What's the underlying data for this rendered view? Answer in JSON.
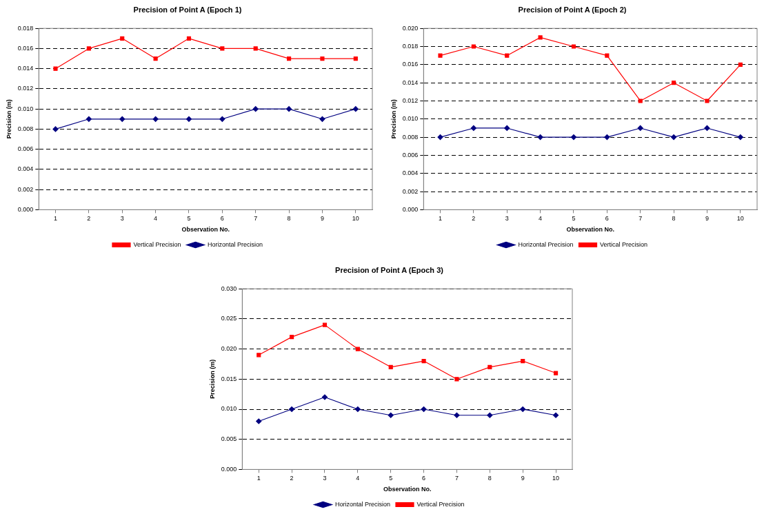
{
  "chart_data": [
    {
      "type": "line",
      "title": "Precision of Point A (Epoch 1)",
      "xlabel": "Observation No.",
      "ylabel": "Precision (m)",
      "categories": [
        "1",
        "2",
        "3",
        "4",
        "5",
        "6",
        "7",
        "8",
        "9",
        "10"
      ],
      "series": [
        {
          "name": "Vertical Precision",
          "color": "#ff0000",
          "marker": "square",
          "values": [
            0.014,
            0.016,
            0.017,
            0.015,
            0.017,
            0.016,
            0.016,
            0.015,
            0.015,
            0.015
          ]
        },
        {
          "name": "Horizontal Precision",
          "color": "#000080",
          "marker": "diamond",
          "values": [
            0.008,
            0.009,
            0.009,
            0.009,
            0.009,
            0.009,
            0.01,
            0.01,
            0.009,
            0.01
          ]
        }
      ],
      "ylim": [
        0,
        0.018
      ],
      "yticks": [
        {
          "value": 0,
          "label": "0.000"
        },
        {
          "value": 0.002,
          "label": "0.002"
        },
        {
          "value": 0.004,
          "label": "0.004"
        },
        {
          "value": 0.006,
          "label": "0.006"
        },
        {
          "value": 0.008,
          "label": "0.008"
        },
        {
          "value": 0.01,
          "label": "0.010"
        },
        {
          "value": 0.012,
          "label": "0.012"
        },
        {
          "value": 0.014,
          "label": "0.014"
        },
        {
          "value": 0.016,
          "label": "0.016"
        },
        {
          "value": 0.018,
          "label": "0.018"
        }
      ],
      "grid": "y",
      "legend": "bottom",
      "line_style": "solid"
    },
    {
      "type": "line",
      "title": "Precision of Point A (Epoch 2)",
      "xlabel": "Observation No.",
      "ylabel": "Precision (m)",
      "categories": [
        "1",
        "2",
        "3",
        "4",
        "5",
        "6",
        "7",
        "8",
        "9",
        "10"
      ],
      "series": [
        {
          "name": "Horizontal Precision",
          "color": "#000080",
          "marker": "diamond",
          "values": [
            0.008,
            0.009,
            0.009,
            0.008,
            0.008,
            0.008,
            0.009,
            0.008,
            0.009,
            0.008
          ]
        },
        {
          "name": "Vertical Precision",
          "color": "#ff0000",
          "marker": "square",
          "values": [
            0.017,
            0.018,
            0.017,
            0.019,
            0.018,
            0.017,
            0.012,
            0.014,
            0.012,
            0.016
          ]
        }
      ],
      "ylim": [
        0,
        0.02
      ],
      "yticks": [
        {
          "value": 0,
          "label": "0.000"
        },
        {
          "value": 0.002,
          "label": "0.002"
        },
        {
          "value": 0.004,
          "label": "0.004"
        },
        {
          "value": 0.006,
          "label": "0.006"
        },
        {
          "value": 0.008,
          "label": "0.008"
        },
        {
          "value": 0.01,
          "label": "0.010"
        },
        {
          "value": 0.012,
          "label": "0.012"
        },
        {
          "value": 0.014,
          "label": "0.014"
        },
        {
          "value": 0.016,
          "label": "0.016"
        },
        {
          "value": 0.018,
          "label": "0.018"
        },
        {
          "value": 0.02,
          "label": "0.020"
        }
      ],
      "grid": "y",
      "legend": "bottom",
      "line_style": "solid"
    },
    {
      "type": "line",
      "title": "Precision of Point A (Epoch 3)",
      "xlabel": "Observation No.",
      "ylabel": "Precision (m)",
      "categories": [
        "1",
        "2",
        "3",
        "4",
        "5",
        "6",
        "7",
        "8",
        "9",
        "10"
      ],
      "series": [
        {
          "name": "Horizontal Precision",
          "color": "#000080",
          "marker": "diamond",
          "values": [
            0.008,
            0.01,
            0.012,
            0.01,
            0.009,
            0.01,
            0.009,
            0.009,
            0.01,
            0.009
          ]
        },
        {
          "name": "Vertical Precision",
          "color": "#ff0000",
          "marker": "square",
          "values": [
            0.019,
            0.022,
            0.024,
            0.02,
            0.017,
            0.018,
            0.015,
            0.017,
            0.018,
            0.016
          ]
        }
      ],
      "ylim": [
        0,
        0.03
      ],
      "yticks": [
        {
          "value": 0,
          "label": "0.000"
        },
        {
          "value": 0.005,
          "label": "0.005"
        },
        {
          "value": 0.01,
          "label": "0.010"
        },
        {
          "value": 0.015,
          "label": "0.015"
        },
        {
          "value": 0.02,
          "label": "0.020"
        },
        {
          "value": 0.025,
          "label": "0.025"
        },
        {
          "value": 0.03,
          "label": "0.030"
        }
      ],
      "grid": "y",
      "legend": "bottom",
      "line_style": "solid"
    }
  ]
}
